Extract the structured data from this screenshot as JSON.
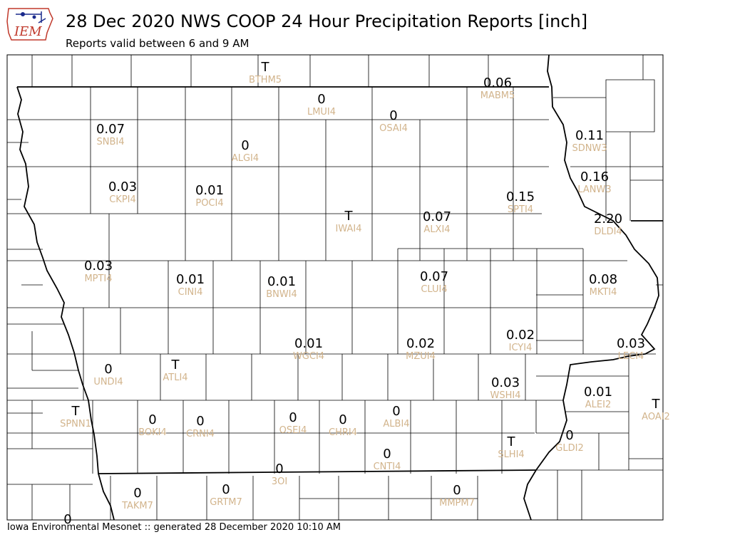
{
  "header": {
    "title": "28 Dec 2020 NWS COOP 24 Hour Precipitation Reports [inch]",
    "subtitle": "Reports valid between 6 and 9 AM"
  },
  "logo": {
    "text": "IEM"
  },
  "footer": {
    "text": "Iowa Environmental Mesonet :: generated 28 December 2020 10:10 AM"
  },
  "colors": {
    "value_text": "#000000",
    "station_text": "#d2b48c",
    "county_lines": "#000000",
    "logo_blue": "#1a2a8c",
    "logo_red": "#c0392b"
  },
  "stations": [
    {
      "id": "BTHM5",
      "value": "T"
    },
    {
      "id": "MABM5",
      "value": "0.06"
    },
    {
      "id": "LMUI4",
      "value": "0"
    },
    {
      "id": "OSAI4",
      "value": "0"
    },
    {
      "id": "SNBI4",
      "value": "0.07"
    },
    {
      "id": "ALGI4",
      "value": "0"
    },
    {
      "id": "SDNW3",
      "value": "0.11"
    },
    {
      "id": "LANW3",
      "value": "0.16"
    },
    {
      "id": "CKPI4",
      "value": "0.03"
    },
    {
      "id": "POCI4",
      "value": "0.01"
    },
    {
      "id": "SPTI4",
      "value": "0.15"
    },
    {
      "id": "IWAI4",
      "value": "T"
    },
    {
      "id": "ALXI4",
      "value": "0.07"
    },
    {
      "id": "DLDI4",
      "value": "2.20"
    },
    {
      "id": "MPTI4",
      "value": "0.03"
    },
    {
      "id": "CINI4",
      "value": "0.01"
    },
    {
      "id": "BNWI4",
      "value": "0.01"
    },
    {
      "id": "CLUI4",
      "value": "0.07"
    },
    {
      "id": "MKTI4",
      "value": "0.08"
    },
    {
      "id": "WGCI4",
      "value": "0.01"
    },
    {
      "id": "MZUI4",
      "value": "0.02"
    },
    {
      "id": "ICYI4",
      "value": "0.02"
    },
    {
      "id": "LECI4",
      "value": "0.03"
    },
    {
      "id": "UNDI4",
      "value": "0"
    },
    {
      "id": "ATLI4",
      "value": "T"
    },
    {
      "id": "WSHI4",
      "value": "0.03"
    },
    {
      "id": "ALEI2",
      "value": "0.01"
    },
    {
      "id": "AOAI2",
      "value": "T"
    },
    {
      "id": "SPNN1",
      "value": "T"
    },
    {
      "id": "BOKI4",
      "value": "0"
    },
    {
      "id": "CRNI4",
      "value": "0"
    },
    {
      "id": "OSEI4",
      "value": "0"
    },
    {
      "id": "CHRI4",
      "value": "0"
    },
    {
      "id": "ALBI4",
      "value": "0"
    },
    {
      "id": "SLHI4",
      "value": "T"
    },
    {
      "id": "GLDI2",
      "value": "0"
    },
    {
      "id": "CNTI4",
      "value": "0"
    },
    {
      "id": "3OI",
      "value": "0"
    },
    {
      "id": "TAKM7",
      "value": "0"
    },
    {
      "id": "GRTM7",
      "value": "0"
    },
    {
      "id": "MMPM7",
      "value": "0"
    },
    {
      "id": "",
      "value": "0"
    }
  ]
}
